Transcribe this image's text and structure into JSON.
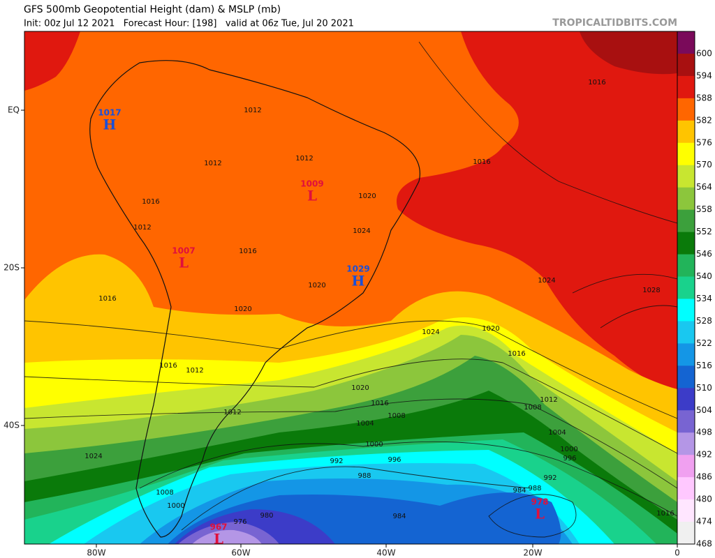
{
  "header": {
    "title": "GFS 500mb Geopotential Height (dam) & MSLP (mb)",
    "subtitle": "Init: 00z Jul 12 2021   Forecast Hour: [198]   valid at 06z Tue, Jul 20 2021",
    "site": "TROPICALTIDBITS.COM"
  },
  "colorbar": {
    "colors": [
      "#7a0a5a",
      "#a81010",
      "#e0180f",
      "#ff6600",
      "#ffc400",
      "#ffff00",
      "#c8e630",
      "#8cc63c",
      "#3ca03c",
      "#0a7a0a",
      "#22b45a",
      "#19d28c",
      "#00ffff",
      "#19c8f0",
      "#1496e6",
      "#1464d2",
      "#3c3cc8",
      "#7864d2",
      "#b496e6",
      "#f0a0f0",
      "#ffc8ff",
      "#ffe6ff",
      "#f0f0f0"
    ],
    "labels": [
      "600",
      "594",
      "588",
      "582",
      "576",
      "570",
      "564",
      "558",
      "552",
      "546",
      "540",
      "534",
      "528",
      "522",
      "516",
      "510",
      "504",
      "498",
      "492",
      "486",
      "480",
      "474",
      "468"
    ]
  },
  "axes": {
    "lat_labels": [
      "EQ",
      "20S",
      "40S"
    ],
    "lon_labels": [
      "80W",
      "60W",
      "40W",
      "20W",
      "0"
    ]
  },
  "pressure_centers": [
    {
      "kind": "H",
      "value": "1017"
    },
    {
      "kind": "L",
      "value": "1009"
    },
    {
      "kind": "L",
      "value": "1007"
    },
    {
      "kind": "H",
      "value": "1029"
    },
    {
      "kind": "L",
      "value": "967"
    },
    {
      "kind": "L",
      "value": "978"
    }
  ],
  "isobar_labels": [
    "1016",
    "1012",
    "1012",
    "1012",
    "1016",
    "1012",
    "1016",
    "1016",
    "1020",
    "1024",
    "1020",
    "1024",
    "1028",
    "1016",
    "1020",
    "1024",
    "1020",
    "1016",
    "1016",
    "1012",
    "1020",
    "1016",
    "1012",
    "1008",
    "1004",
    "1000",
    "1008",
    "1012",
    "1004",
    "1000",
    "996",
    "992",
    "996",
    "988",
    "992",
    "988",
    "984",
    "984",
    "980",
    "976",
    "1000",
    "1008",
    "1024",
    "1016"
  ]
}
